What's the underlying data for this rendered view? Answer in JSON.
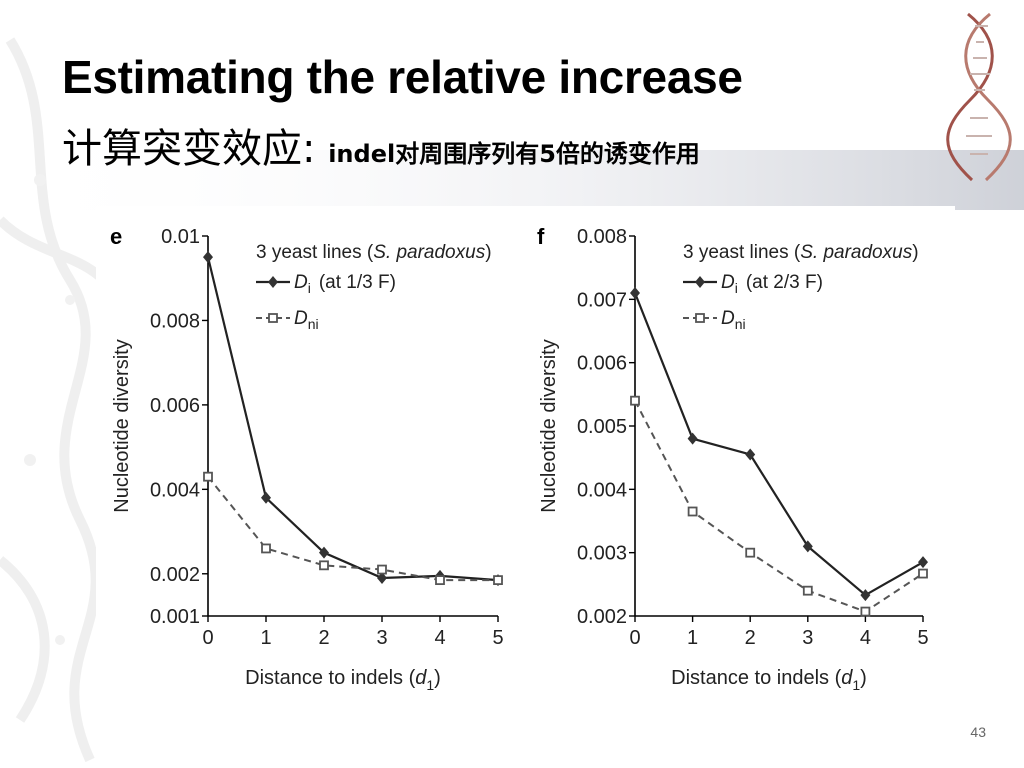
{
  "slide": {
    "title_line1": "Estimating the relative increase",
    "title_line2_main": "计算突变效应: ",
    "title_line2_sub": "indel对周围序列有5倍的诱变作用",
    "page_number": "43"
  },
  "chart_data": [
    {
      "type": "line",
      "panel_label": "e",
      "legend_title_prefix": "3 yeast lines (",
      "legend_title_species": "S. paradoxus",
      "legend_title_suffix": ")",
      "legend_di_letter": "D",
      "legend_di_sub": "i",
      "legend_di_note": "(at 1/3 F)",
      "legend_dni_letter": "D",
      "legend_dni_sub": "ni",
      "xlabel_prefix": "Distance to indels (",
      "xlabel_var": "d",
      "xlabel_sub": "1",
      "xlabel_suffix": ")",
      "ylabel": "Nucleotide diversity",
      "x": [
        0,
        1,
        2,
        3,
        4,
        5
      ],
      "xlim": [
        0,
        5
      ],
      "ylim": [
        0.001,
        0.01
      ],
      "yticks": [
        0.001,
        0.002,
        0.004,
        0.006,
        0.008,
        0.01
      ],
      "ytick_labels": [
        "0.001",
        "0.002",
        "0.004",
        "0.006",
        "0.008",
        "0.01"
      ],
      "xtick_labels": [
        "0",
        "1",
        "2",
        "3",
        "4",
        "5"
      ],
      "series": [
        {
          "name": "Di",
          "style": "solid-diamond",
          "values": [
            0.0095,
            0.0038,
            0.0025,
            0.0019,
            0.00195,
            0.00185
          ]
        },
        {
          "name": "Dni",
          "style": "dashed-square",
          "values": [
            0.0043,
            0.0026,
            0.0022,
            0.0021,
            0.00185,
            0.00185
          ]
        }
      ]
    },
    {
      "type": "line",
      "panel_label": "f",
      "legend_title_prefix": "3 yeast lines (",
      "legend_title_species": "S. paradoxus",
      "legend_title_suffix": ")",
      "legend_di_letter": "D",
      "legend_di_sub": "i",
      "legend_di_note": "(at 2/3 F)",
      "legend_dni_letter": "D",
      "legend_dni_sub": "ni",
      "xlabel_prefix": "Distance to indels (",
      "xlabel_var": "d",
      "xlabel_sub": "1",
      "xlabel_suffix": ")",
      "ylabel": "Nucleotide diversity",
      "x": [
        0,
        1,
        2,
        3,
        4,
        5
      ],
      "xlim": [
        0,
        5
      ],
      "ylim": [
        0.002,
        0.008
      ],
      "yticks": [
        0.002,
        0.003,
        0.004,
        0.005,
        0.006,
        0.007,
        0.008
      ],
      "ytick_labels": [
        "0.002",
        "0.003",
        "0.004",
        "0.005",
        "0.006",
        "0.007",
        "0.008"
      ],
      "xtick_labels": [
        "0",
        "1",
        "2",
        "3",
        "4",
        "5"
      ],
      "series": [
        {
          "name": "Di",
          "style": "solid-diamond",
          "values": [
            0.0071,
            0.0048,
            0.00455,
            0.0031,
            0.00233,
            0.00285
          ]
        },
        {
          "name": "Dni",
          "style": "dashed-square",
          "values": [
            0.0054,
            0.00365,
            0.003,
            0.0024,
            0.00207,
            0.00267
          ]
        }
      ]
    }
  ]
}
